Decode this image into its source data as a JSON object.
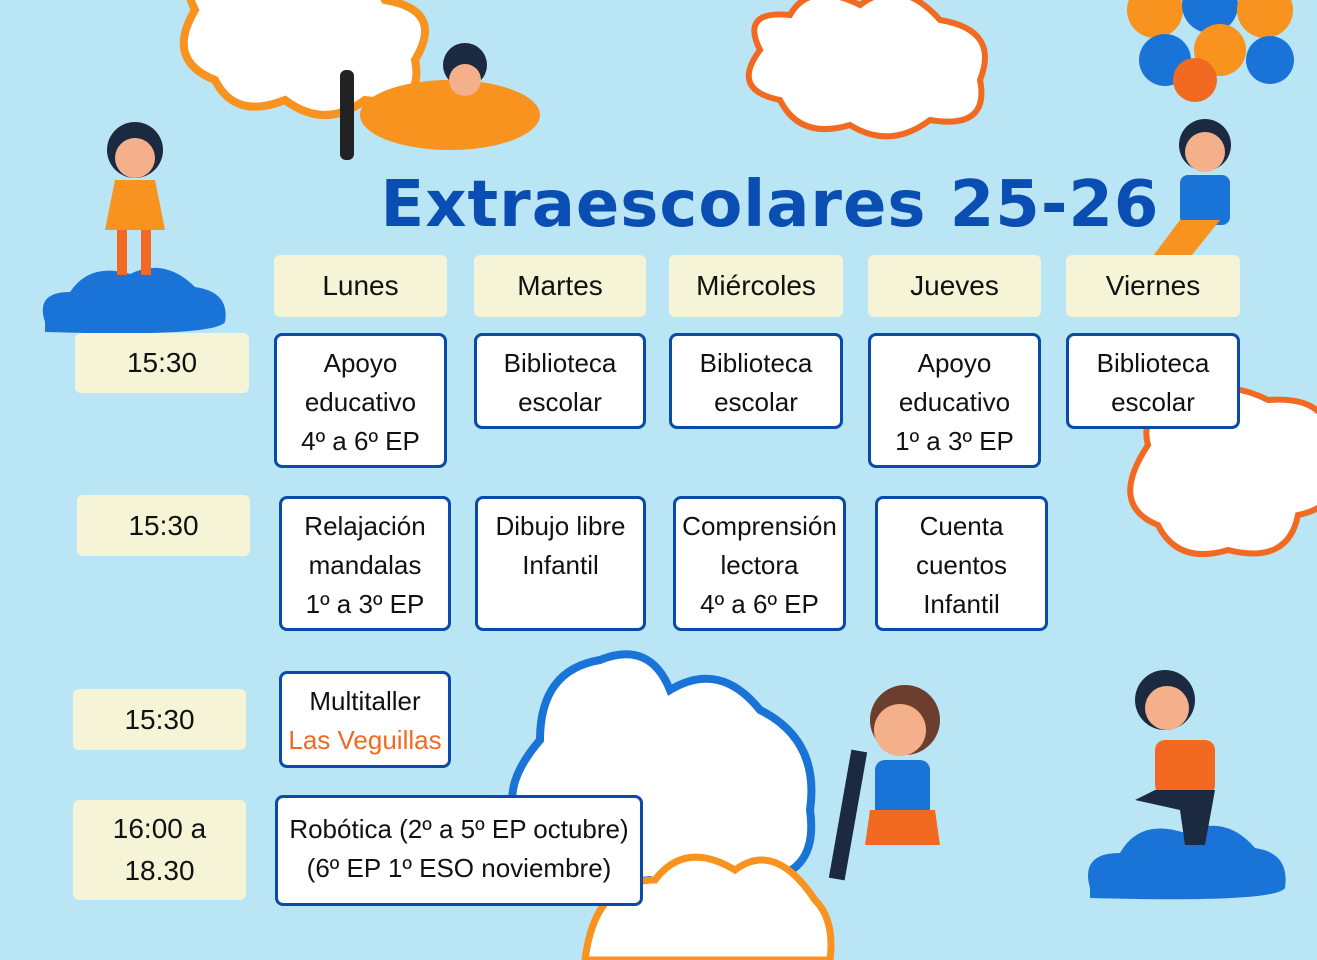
{
  "title": "Extraescolares 25-26",
  "days": [
    "Lunes",
    "Martes",
    "Miércoles",
    "Jueves",
    "Viernes"
  ],
  "times": [
    "15:30",
    "15:30",
    "15:30",
    "16:00 a",
    "18.30"
  ],
  "row1": {
    "lunes": [
      "Apoyo",
      "educativo",
      "4º a 6º EP"
    ],
    "martes": [
      "Biblioteca",
      "escolar"
    ],
    "miercoles": [
      "Biblioteca",
      "escolar"
    ],
    "jueves": [
      "Apoyo",
      "educativo",
      "1º a 3º EP"
    ],
    "viernes": [
      "Biblioteca",
      "escolar"
    ]
  },
  "row2": {
    "lunes": [
      "Relajación",
      "mandalas",
      "1º a 3º EP"
    ],
    "martes": [
      "Dibujo libre",
      "Infantil"
    ],
    "miercoles": [
      "Comprensión",
      "lectora",
      "4º a 6º EP"
    ],
    "jueves": [
      "Cuenta",
      "cuentos",
      "Infantil"
    ]
  },
  "row3": {
    "lunes": [
      "Multitaller",
      "Las Veguillas"
    ]
  },
  "row4": {
    "lunes": [
      "Robótica (2º a 5º EP octubre)",
      "(6º EP 1º ESO  noviembre)"
    ]
  },
  "colors": {
    "background": "#b9e5f4",
    "title": "#0a4db3",
    "border": "#0a4aa8",
    "accent": "#f26a21",
    "header_bg": "#f6f4d6"
  }
}
